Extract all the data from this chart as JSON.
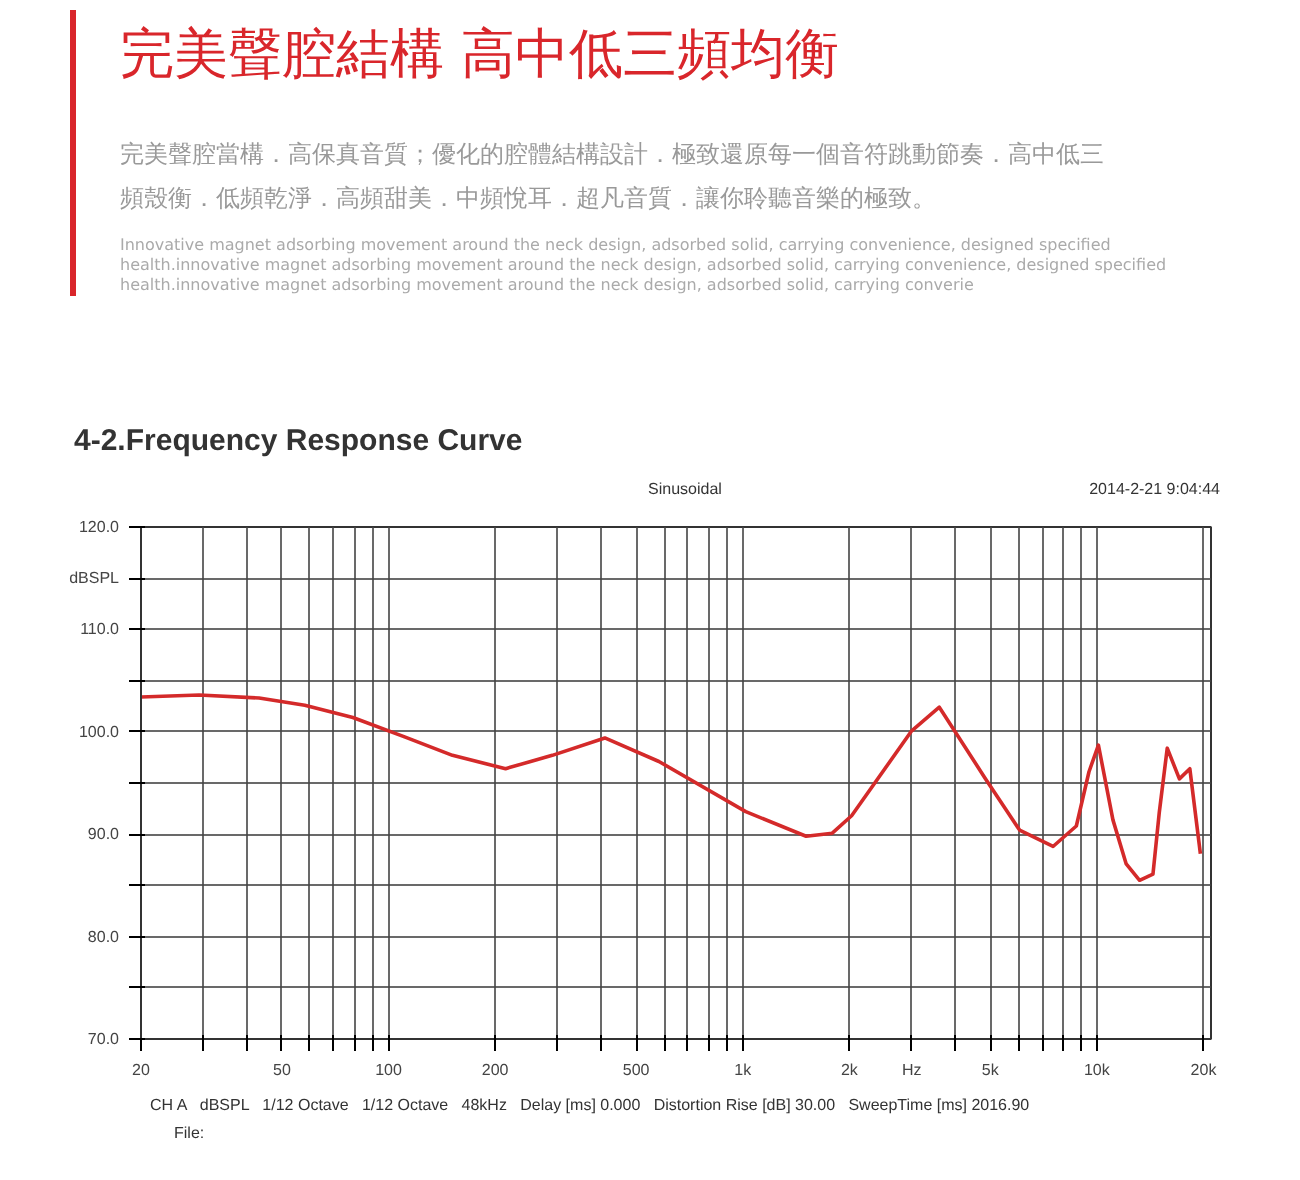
{
  "chart_data": {
    "type": "line",
    "title": "4-2.Frequency Response Curve",
    "subtitle": "完美聲腔結構  高中低三頻均衡",
    "annotations": [
      "完美聲腔當構．高保真音質；優化的腔體結構設計．極致還原每一個音符跳動節奏．高中低三頻殼衡．低頻乾淨．高頻甜美．中頻悅耳．超凡音質．讓你聆聽音樂的極致。",
      "Innovative magnet adsorbing movement around the neck design, adsorbed solid, carrying convenience, designed specified health.innovative magnet adsorbing movement around the neck design, adsorbed solid, carrying convenience, designed specified health.innovative magnet adsorbing movement around the neck design, adsorbed solid, carrying converie",
      "Sinusoidal",
      "2014-2-21 9:04:44",
      "CH A   dBSPL   1/12 Octave   1/12 Octave   48kHz   Delay [ms] 0.000   Distortion Rise [dB] 30.00   SweepTime [ms] 2016.90",
      "File:"
    ],
    "x": [
      20,
      29.2,
      43.1,
      58,
      79.3,
      111,
      151.5,
      214,
      290,
      408,
      580,
      1020,
      1510,
      1790,
      2030,
      3000,
      3590,
      4850,
      6050,
      7520,
      8750,
      9500,
      10100,
      11100,
      12100,
      13200,
      14400,
      15000,
      15800,
      17100,
      18300,
      19600
    ],
    "series": [
      {
        "color": "#d42a2a",
        "values": [
          103.4,
          103.6,
          103.3,
          102.6,
          101.4,
          99.5,
          97.7,
          96.4,
          97.7,
          99.4,
          97.1,
          92.2,
          89.8,
          90.1,
          91.8,
          100.1,
          102.4,
          95.4,
          90.4,
          88.8,
          90.8,
          96.1,
          98.7,
          91.4,
          87.1,
          85.5,
          86.1,
          92.1,
          98.4,
          95.4,
          96.4,
          88.1
        ]
      }
    ],
    "log": "x",
    "xlim": [
      20,
      21000
    ],
    "xticks": [
      20,
      {
        "value": 30,
        "label": null
      },
      {
        "value": 40,
        "label": null
      },
      50,
      {
        "value": 60,
        "label": null
      },
      {
        "value": 70,
        "label": null
      },
      {
        "value": 80,
        "label": null
      },
      {
        "value": 90,
        "label": null
      },
      100,
      200,
      {
        "value": 300,
        "label": null
      },
      {
        "value": 400,
        "label": null
      },
      500,
      {
        "value": 600,
        "label": null
      },
      {
        "value": 700,
        "label": null
      },
      {
        "value": 800,
        "label": null
      },
      {
        "value": 900,
        "label": null
      },
      {
        "value": 1000,
        "label": "1k"
      },
      {
        "value": 2000,
        "label": "2k"
      },
      {
        "value": 3000,
        "label": "Hz"
      },
      {
        "value": 4000,
        "label": null
      },
      {
        "value": 5000,
        "label": "5k"
      },
      {
        "value": 6000,
        "label": null
      },
      {
        "value": 7000,
        "label": null
      },
      {
        "value": 8000,
        "label": null
      },
      {
        "value": 9000,
        "label": null
      },
      {
        "value": 10000,
        "label": "10k"
      },
      {
        "value": 20000,
        "label": "20k"
      }
    ],
    "ylim": [
      70,
      120
    ],
    "yticks": [
      {
        "value": 70,
        "label": "70.0"
      },
      {
        "value": 75,
        "label": null
      },
      {
        "value": 80,
        "label": "80.0"
      },
      {
        "value": 85,
        "label": null
      },
      {
        "value": 90,
        "label": "90.0"
      },
      {
        "value": 95,
        "label": null
      },
      {
        "value": 100,
        "label": "100.0"
      },
      {
        "value": 105,
        "label": null
      },
      {
        "value": 110,
        "label": "110.0"
      },
      {
        "value": 115,
        "label": "dBSPL"
      },
      {
        "value": 120,
        "label": "120.0"
      }
    ],
    "grid": true
  }
}
